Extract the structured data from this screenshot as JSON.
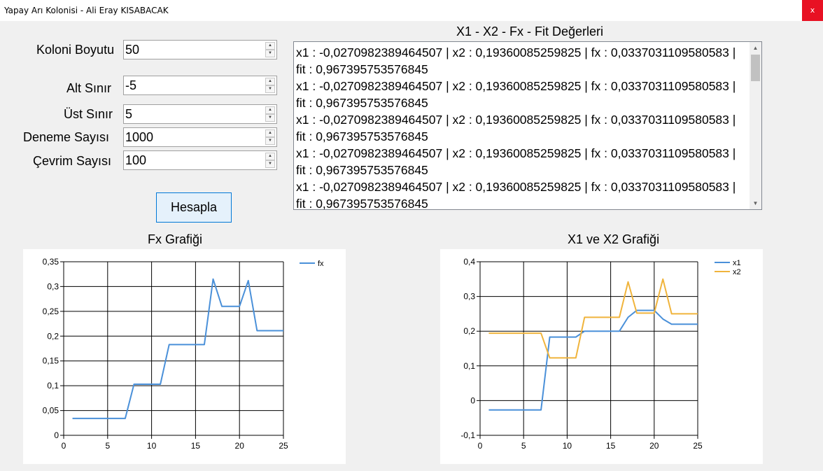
{
  "window": {
    "title": "Yapay Arı Kolonisi - Ali Eray KISABACAK",
    "close_label": "x"
  },
  "params": {
    "colony_size": {
      "label": "Koloni Boyutu",
      "value": "50"
    },
    "lower_bound": {
      "label": "Alt Sınır",
      "value": "-5"
    },
    "upper_bound": {
      "label": "Üst Sınır",
      "value": "5"
    },
    "trial_count": {
      "label": "Deneme Sayısı",
      "value": "1000"
    },
    "cycle_count": {
      "label": "Çevrim Sayısı",
      "value": "100"
    }
  },
  "actions": {
    "calculate_label": "Hesapla"
  },
  "results": {
    "title": "X1 - X2 - Fx - Fit Değerleri",
    "lines": [
      "x1 : -0,0270982389464507 | x2 : 0,19360085259825 | fx : 0,0337031109580583 |",
      "fit : 0,967395753576845",
      "x1 : -0,0270982389464507 | x2 : 0,19360085259825 | fx : 0,0337031109580583 |",
      "fit : 0,967395753576845",
      "x1 : -0,0270982389464507 | x2 : 0,19360085259825 | fx : 0,0337031109580583 |",
      "fit : 0,967395753576845",
      "x1 : -0,0270982389464507 | x2 : 0,19360085259825 | fx : 0,0337031109580583 |",
      "fit : 0,967395753576845",
      "x1 : -0,0270982389464507 | x2 : 0,19360085259825 | fx : 0,0337031109580583 |",
      "fit : 0,967395753576845"
    ]
  },
  "chart_data": [
    {
      "type": "line",
      "title": "Fx Grafiği",
      "xlabel": "",
      "ylabel": "",
      "xlim": [
        0,
        25
      ],
      "ylim": [
        0,
        0.35
      ],
      "x_ticks": [
        "0",
        "5",
        "10",
        "15",
        "20",
        "25"
      ],
      "y_ticks": [
        "0",
        "0,05",
        "0,1",
        "0,15",
        "0,2",
        "0,25",
        "0,3",
        "0,35"
      ],
      "grid": true,
      "legend": "top-right",
      "x": [
        1,
        2,
        3,
        4,
        5,
        6,
        7,
        8,
        9,
        10,
        11,
        12,
        13,
        14,
        15,
        16,
        17,
        18,
        19,
        20,
        21,
        22,
        23,
        24,
        25
      ],
      "series": [
        {
          "name": "fx",
          "color": "#4a90d9",
          "values": [
            0.034,
            0.034,
            0.034,
            0.034,
            0.034,
            0.034,
            0.034,
            0.103,
            0.103,
            0.103,
            0.103,
            0.183,
            0.183,
            0.183,
            0.183,
            0.183,
            0.315,
            0.26,
            0.26,
            0.26,
            0.312,
            0.211,
            0.211,
            0.211,
            0.211
          ]
        }
      ]
    },
    {
      "type": "line",
      "title": "X1 ve X2 Grafiği",
      "xlabel": "",
      "ylabel": "",
      "xlim": [
        0,
        25
      ],
      "ylim": [
        -0.1,
        0.4
      ],
      "x_ticks": [
        "0",
        "5",
        "10",
        "15",
        "20",
        "25"
      ],
      "y_ticks": [
        "-0,1",
        "0",
        "0,1",
        "0,2",
        "0,3",
        "0,4"
      ],
      "grid": true,
      "legend": "top-right",
      "x": [
        1,
        2,
        3,
        4,
        5,
        6,
        7,
        8,
        9,
        10,
        11,
        12,
        13,
        14,
        15,
        16,
        17,
        18,
        19,
        20,
        21,
        22,
        23,
        24,
        25
      ],
      "series": [
        {
          "name": "x1",
          "color": "#4a90d9",
          "values": [
            -0.027,
            -0.027,
            -0.027,
            -0.027,
            -0.027,
            -0.027,
            -0.027,
            0.183,
            0.183,
            0.183,
            0.183,
            0.2,
            0.2,
            0.2,
            0.2,
            0.2,
            0.24,
            0.26,
            0.26,
            0.26,
            0.235,
            0.22,
            0.22,
            0.22,
            0.22
          ]
        },
        {
          "name": "x2",
          "color": "#f0b43c",
          "values": [
            0.194,
            0.194,
            0.194,
            0.194,
            0.194,
            0.194,
            0.194,
            0.123,
            0.123,
            0.123,
            0.123,
            0.24,
            0.24,
            0.24,
            0.24,
            0.24,
            0.342,
            0.252,
            0.252,
            0.252,
            0.35,
            0.25,
            0.25,
            0.25,
            0.25
          ]
        }
      ]
    }
  ]
}
